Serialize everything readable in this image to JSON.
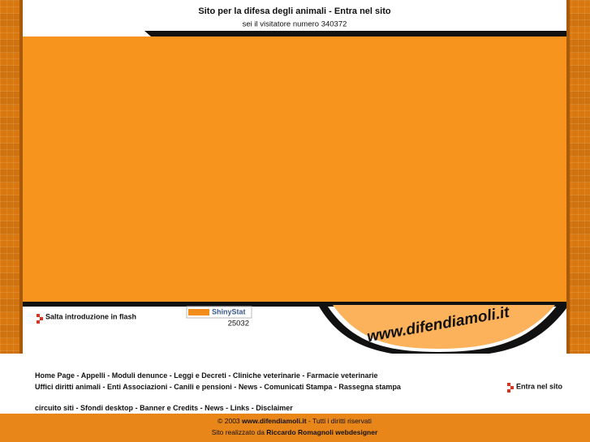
{
  "header": {
    "title": "Sito per la difesa degli animali - Entra nel sito",
    "visitor": "sei il visitatore numero 340372"
  },
  "intro": {
    "skip": "Salta introduzione in flash"
  },
  "counter": {
    "brand": "ShinyStat",
    "value": "25032"
  },
  "logo": "www.difendiamoli.it",
  "nav": {
    "separator": "-",
    "rows": [
      [
        "Home Page",
        "Appelli",
        "Moduli denunce",
        "Leggi e Decreti",
        "Cliniche veterinarie",
        "Farmacie veterinarie"
      ],
      [
        "Uffici diritti animali",
        "Enti Associazioni",
        "Canili e pensioni",
        "News",
        "Comunicati Stampa",
        "Rassegna stampa"
      ],
      [
        "circuito siti",
        "Sfondi desktop",
        "Banner e Credits",
        "News",
        "Links",
        "Disclaimer"
      ]
    ],
    "enter": "Entra nel sito"
  },
  "footer": {
    "line1": [
      "© 2003",
      "www.difendiamoli.it",
      "- Tutti i diritti riservati"
    ],
    "line2": [
      "Sito realizzato da",
      "Riccardo Romagnoli webdesigner"
    ]
  }
}
